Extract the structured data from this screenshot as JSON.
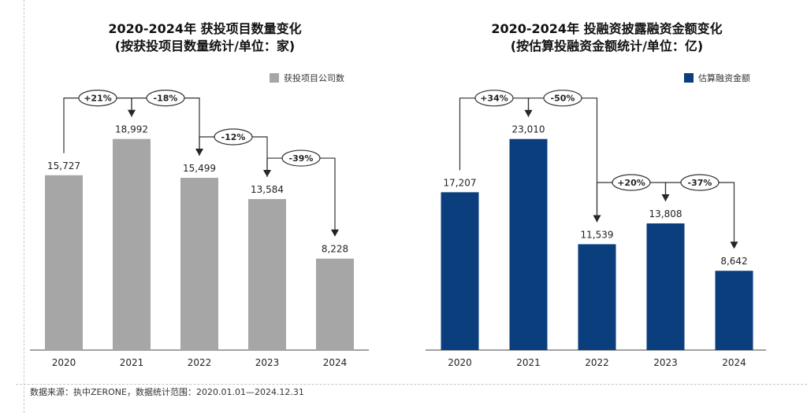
{
  "source_note": "数据来源：执中ZERONE，数据统计范围：2020.01.01—2024.12.31",
  "colors": {
    "left_bar": "#a6a6a6",
    "right_bar": "#0b3e7c",
    "axis": "#444444"
  },
  "chart_data": [
    {
      "type": "bar",
      "title": "2020-2024年 获投项目数量变化",
      "subtitle": "(按获投项目数量统计/单位：家)",
      "xlabel": "",
      "ylabel": "",
      "categories": [
        "2020",
        "2021",
        "2022",
        "2023",
        "2024"
      ],
      "series": [
        {
          "name": "获投项目公司数",
          "values": [
            15727,
            18992,
            15499,
            13584,
            8228
          ]
        }
      ],
      "value_labels": [
        "15,727",
        "18,992",
        "15,499",
        "13,584",
        "8,228"
      ],
      "changes": [
        "+21%",
        "-18%",
        "-12%",
        "-39%"
      ],
      "legend": "top-right",
      "grid": false
    },
    {
      "type": "bar",
      "title": "2020-2024年 投融资披露融资金额变化",
      "subtitle": "(按估算投融资金额统计/单位：亿)",
      "xlabel": "",
      "ylabel": "",
      "categories": [
        "2020",
        "2021",
        "2022",
        "2023",
        "2024"
      ],
      "series": [
        {
          "name": "估算融资金额",
          "values": [
            17207,
            23010,
            11539,
            13808,
            8642
          ]
        }
      ],
      "value_labels": [
        "17,207",
        "23,010",
        "11,539",
        "13,808",
        "8,642"
      ],
      "changes": [
        "+34%",
        "-50%",
        "+20%",
        "-37%"
      ],
      "legend": "top-right",
      "grid": false
    }
  ]
}
